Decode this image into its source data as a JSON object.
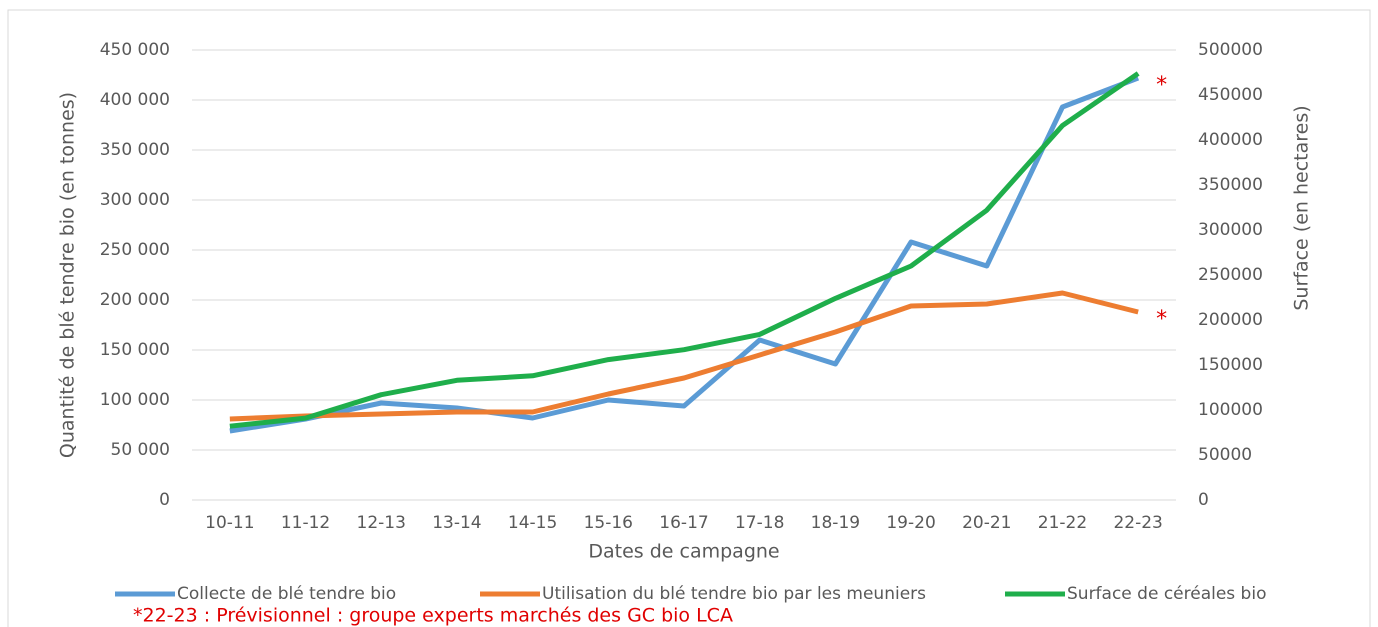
{
  "chart_data": {
    "type": "line",
    "xlabel": "Dates de campagne",
    "ylabel": "Quantité de blé tendre bio (en tonnes)",
    "y2label": "Surface (en hectares)",
    "categories": [
      "10-11",
      "11-12",
      "12-13",
      "13-14",
      "14-15",
      "15-16",
      "16-17",
      "17-18",
      "18-19",
      "19-20",
      "20-21",
      "21-22",
      "22-23"
    ],
    "series": [
      {
        "name": "Collecte de blé tendre bio",
        "color": "#5b9bd5",
        "values": [
          69000,
          81000,
          97000,
          92000,
          82000,
          100000,
          94000,
          160000,
          136000,
          258000,
          234000,
          393000,
          422000
        ]
      },
      {
        "name": "Utilisation du blé tendre bio par les meuniers",
        "color": "#ed7d31",
        "values": [
          81000,
          84000,
          86000,
          88000,
          88000,
          106000,
          122000,
          145000,
          168000,
          194000,
          196000,
          207000,
          188000
        ]
      },
      {
        "name": "Surface de céréales bio",
        "color": "#1fae4b",
        "axis": "y2",
        "values": [
          82000,
          91000,
          117000,
          133000,
          138000,
          156000,
          167000,
          184000,
          224000,
          260000,
          322000,
          416000,
          474000
        ]
      }
    ],
    "ylim": [
      0,
      450000
    ],
    "yticks": [
      0,
      {
        "value": 50000,
        "label": "50 000"
      },
      {
        "value": 100000,
        "label": "100 000"
      },
      {
        "value": 150000,
        "label": "150 000"
      },
      {
        "value": 200000,
        "label": "200 000"
      },
      {
        "value": 250000,
        "label": "250 000"
      },
      {
        "value": 300000,
        "label": "300 000"
      },
      {
        "value": 350000,
        "label": "350 000"
      },
      {
        "value": 400000,
        "label": "400 000"
      },
      {
        "value": 450000,
        "label": "450 000"
      }
    ],
    "y2lim": [
      0,
      500000
    ],
    "y2ticks": [
      0,
      50000,
      100000,
      150000,
      200000,
      250000,
      300000,
      350000,
      400000,
      450000,
      500000
    ],
    "grid": true,
    "legend": "bottom",
    "annotations": [
      "*",
      "*"
    ],
    "footnote": "*22-23 : Prévisionnel : groupe experts marchés des GC bio LCA"
  }
}
